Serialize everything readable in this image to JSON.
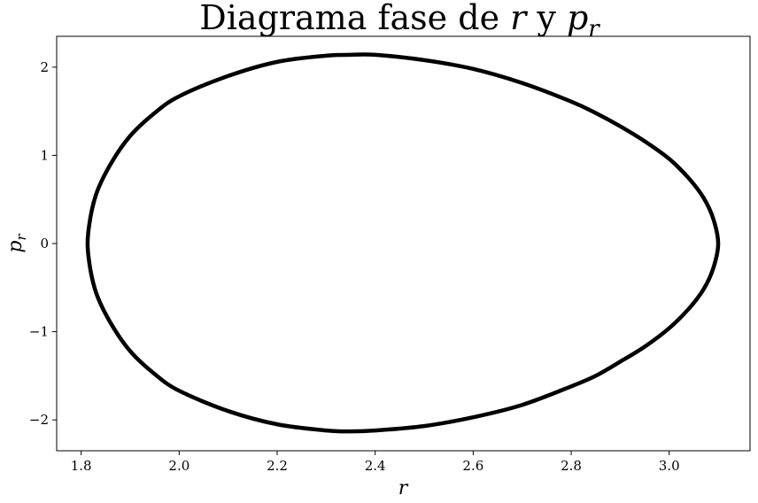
{
  "chart_data": {
    "type": "line",
    "title": {
      "prefix": "Diagrama fase de ",
      "var1": "r",
      "conj": " y ",
      "var2": "p",
      "var2_sub": "r"
    },
    "xlabel": "r",
    "ylabel": {
      "main": "p",
      "sub": "r"
    },
    "xlim": [
      1.75,
      3.165
    ],
    "ylim": [
      -2.35,
      2.35
    ],
    "xticks": [
      1.8,
      2.0,
      2.2,
      2.4,
      2.6,
      2.8,
      3.0
    ],
    "xtick_labels": [
      "1.8",
      "2.0",
      "2.2",
      "2.4",
      "2.6",
      "2.8",
      "3.0"
    ],
    "yticks": [
      2,
      1,
      0,
      -1,
      -2
    ],
    "ytick_labels": [
      "2",
      "1",
      "0",
      "−1",
      "−2"
    ],
    "grid": false,
    "series": [
      {
        "color": "#000000",
        "closed": true,
        "x": [
          3.1,
          3.09,
          3.07,
          3.04,
          3.0,
          2.95,
          2.9,
          2.85,
          2.8,
          2.7,
          2.6,
          2.5,
          2.4,
          2.35,
          2.3,
          2.2,
          2.1,
          2.0,
          1.95,
          1.9,
          1.86,
          1.83,
          1.815,
          1.815,
          1.83,
          1.86,
          1.9,
          1.95,
          2.0,
          2.1,
          2.2,
          2.3,
          2.35,
          2.4,
          2.5,
          2.6,
          2.7,
          2.8,
          2.85,
          2.9,
          2.95,
          3.0,
          3.04,
          3.07,
          3.09
        ],
        "y": [
          0.0,
          0.28,
          0.52,
          0.74,
          0.96,
          1.16,
          1.33,
          1.48,
          1.61,
          1.82,
          1.98,
          2.08,
          2.14,
          2.14,
          2.13,
          2.06,
          1.9,
          1.67,
          1.48,
          1.22,
          0.9,
          0.55,
          0.15,
          -0.15,
          -0.55,
          -0.9,
          -1.22,
          -1.48,
          -1.67,
          -1.9,
          -2.05,
          -2.12,
          -2.13,
          -2.12,
          -2.07,
          -1.97,
          -1.83,
          -1.62,
          -1.5,
          -1.34,
          -1.17,
          -0.96,
          -0.74,
          -0.52,
          -0.28
        ]
      }
    ]
  }
}
